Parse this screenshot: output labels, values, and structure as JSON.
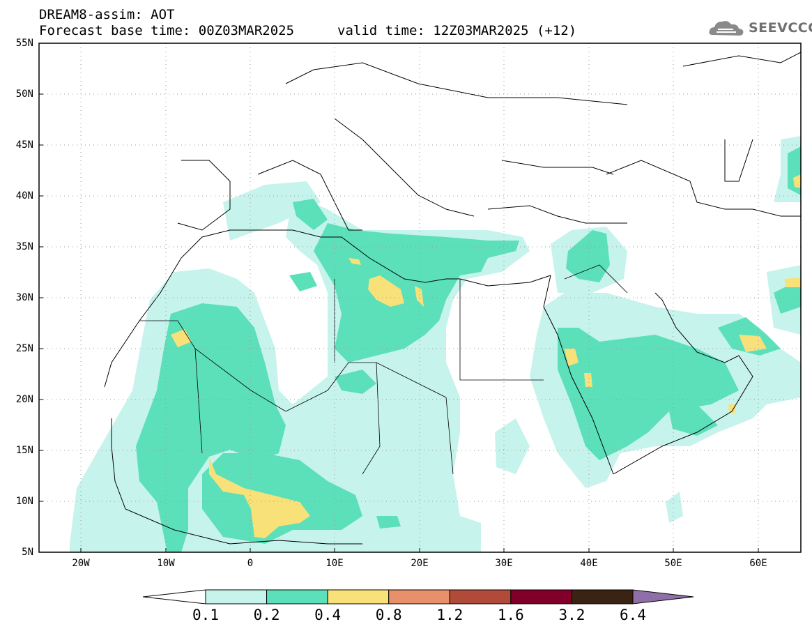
{
  "header": {
    "model": "DREAM8-assim: AOT",
    "base_time": "Forecast base time: 00Z03MAR2025",
    "valid_time": "valid time: 12Z03MAR2025 (+12)",
    "logo_text": "SEEVCCC",
    "logo_icon": "cloud-icon"
  },
  "map": {
    "lon_range": [
      -25,
      65
    ],
    "lat_range": [
      5,
      55
    ],
    "lat_labels": [
      "55N",
      "50N",
      "45N",
      "40N",
      "35N",
      "30N",
      "25N",
      "20N",
      "15N",
      "10N",
      "5N"
    ],
    "lon_labels": [
      "20W",
      "10W",
      "0",
      "10E",
      "20E",
      "30E",
      "40E",
      "50E",
      "60E"
    ],
    "grid": "dotted",
    "field": "Aerosol Optical Thickness",
    "aot_features": [
      {
        "region": "West Africa / Mali",
        "level": "0.2-0.4"
      },
      {
        "region": "Nigeria / Benin",
        "level": "0.4-0.8"
      },
      {
        "region": "Libya",
        "level": "0.4-0.8"
      },
      {
        "region": "Arabian Peninsula",
        "level": "0.2-0.4"
      },
      {
        "region": "Persian Gulf / Iran coast",
        "level": "0.4-0.8"
      }
    ]
  },
  "colorbar": {
    "labels": [
      "0.1",
      "0.2",
      "0.4",
      "0.8",
      "1.2",
      "1.6",
      "3.2",
      "6.4"
    ],
    "colors": [
      "#ffffff",
      "#c6f3ec",
      "#5ce0b9",
      "#f9e17a",
      "#e8906a",
      "#b04b3a",
      "#80002a",
      "#3a2312",
      "#8e6fa8"
    ]
  }
}
